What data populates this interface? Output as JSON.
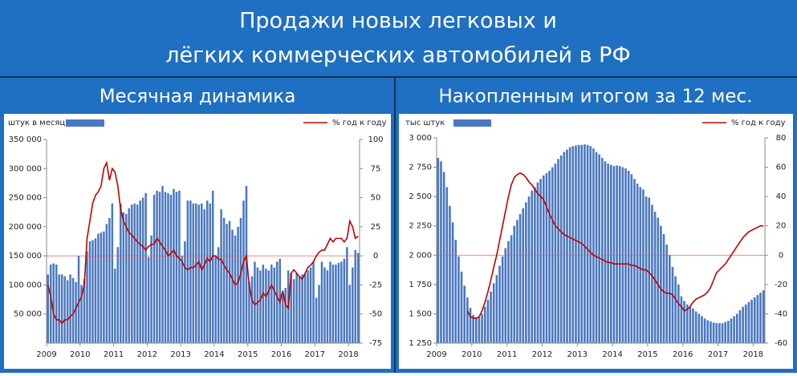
{
  "header": {
    "title": [
      "Продажи новых легковых и",
      "лёгких коммерческих автомобилей в РФ"
    ]
  },
  "chart_data": [
    {
      "type": "bar",
      "title": "Месячная динамика",
      "categories": [
        "2009",
        null,
        null,
        null,
        null,
        null,
        null,
        null,
        null,
        null,
        null,
        null,
        "2010",
        null,
        null,
        null,
        null,
        null,
        null,
        null,
        null,
        null,
        null,
        null,
        "2011",
        null,
        null,
        null,
        null,
        null,
        null,
        null,
        null,
        null,
        null,
        null,
        "2012",
        null,
        null,
        null,
        null,
        null,
        null,
        null,
        null,
        null,
        null,
        null,
        "2013",
        null,
        null,
        null,
        null,
        null,
        null,
        null,
        null,
        null,
        null,
        null,
        "2014",
        null,
        null,
        null,
        null,
        null,
        null,
        null,
        null,
        null,
        null,
        null,
        "2015",
        null,
        null,
        null,
        null,
        null,
        null,
        null,
        null,
        null,
        null,
        null,
        "2016",
        null,
        null,
        null,
        null,
        null,
        null,
        null,
        null,
        null,
        null,
        null,
        "2017",
        null,
        null,
        null,
        null,
        null,
        null,
        null,
        null,
        null,
        null,
        null,
        "2018",
        null,
        null,
        null
      ],
      "series": [
        {
          "name": "штук в месяц",
          "color": "#4a78c0",
          "type": "bar",
          "values": [
            118000,
            135000,
            137000,
            135000,
            118000,
            118000,
            115000,
            108000,
            118000,
            112000,
            105000,
            150000,
            100000,
            110000,
            158000,
            175000,
            177000,
            180000,
            188000,
            190000,
            192000,
            205000,
            215000,
            240000,
            128000,
            165000,
            240000,
            225000,
            222000,
            232000,
            238000,
            240000,
            238000,
            245000,
            250000,
            258000,
            148000,
            185000,
            255000,
            262000,
            260000,
            270000,
            260000,
            258000,
            255000,
            265000,
            260000,
            262000,
            150000,
            175000,
            245000,
            245000,
            240000,
            240000,
            238000,
            240000,
            230000,
            245000,
            240000,
            262000,
            150000,
            165000,
            230000,
            215000,
            205000,
            210000,
            195000,
            185000,
            200000,
            215000,
            245000,
            270000,
            105000,
            115000,
            140000,
            130000,
            125000,
            135000,
            128000,
            125000,
            135000,
            130000,
            140000,
            145000,
            85000,
            95000,
            125000,
            120000,
            110000,
            120000,
            115000,
            118000,
            120000,
            125000,
            130000,
            140000,
            78000,
            100000,
            140000,
            130000,
            125000,
            140000,
            135000,
            135000,
            138000,
            140000,
            145000,
            165000,
            100000,
            130000,
            160000,
            155000
          ]
        },
        {
          "name": "% год к году",
          "color": "#c00000",
          "type": "line",
          "axis": "y2",
          "values": [
            -25,
            -35,
            -50,
            -55,
            -55,
            -58,
            -55,
            -55,
            -52,
            -50,
            -45,
            -40,
            -35,
            -25,
            15,
            30,
            45,
            52,
            55,
            60,
            75,
            80,
            65,
            75,
            72,
            60,
            40,
            30,
            25,
            20,
            18,
            15,
            12,
            10,
            8,
            5,
            8,
            10,
            10,
            15,
            12,
            8,
            5,
            0,
            2,
            5,
            0,
            -2,
            -5,
            -10,
            -12,
            -10,
            -10,
            -8,
            -5,
            -12,
            -8,
            -2,
            -5,
            0,
            0,
            -3,
            -3,
            -8,
            -12,
            -15,
            -20,
            -25,
            -23,
            -15,
            -5,
            0,
            -25,
            -38,
            -42,
            -40,
            -38,
            -32,
            -35,
            -30,
            -25,
            -30,
            -35,
            -40,
            -30,
            -42,
            -45,
            -15,
            -12,
            -15,
            -18,
            -20,
            -15,
            -10,
            -8,
            -5,
            0,
            3,
            5,
            5,
            10,
            15,
            12,
            15,
            15,
            15,
            12,
            15,
            30,
            25,
            15,
            17
          ]
        }
      ],
      "ylim": [
        0,
        350000
      ],
      "yticks": [
        {
          "value": 50000,
          "label": "50 000"
        },
        {
          "value": 100000,
          "label": "100 000"
        },
        {
          "value": 150000,
          "label": "150 000"
        },
        {
          "value": 200000,
          "label": "200 000"
        },
        {
          "value": 250000,
          "label": "250 000"
        },
        {
          "value": 300000,
          "label": "300 000"
        },
        {
          "value": 350000,
          "label": "350 000"
        }
      ],
      "y2lim": [
        -75,
        100
      ],
      "y2ticks": [
        -75,
        -50,
        -25,
        0,
        25,
        50,
        75,
        100
      ],
      "refline": {
        "axis": "y2",
        "value": 0,
        "color": "#e06060"
      }
    },
    {
      "type": "bar",
      "title": "Накопленным итогом за 12 мес.",
      "categories": [
        "2009",
        null,
        null,
        null,
        null,
        null,
        null,
        null,
        null,
        null,
        null,
        null,
        "2010",
        null,
        null,
        null,
        null,
        null,
        null,
        null,
        null,
        null,
        null,
        null,
        "2011",
        null,
        null,
        null,
        null,
        null,
        null,
        null,
        null,
        null,
        null,
        null,
        "2012",
        null,
        null,
        null,
        null,
        null,
        null,
        null,
        null,
        null,
        null,
        null,
        "2013",
        null,
        null,
        null,
        null,
        null,
        null,
        null,
        null,
        null,
        null,
        null,
        "2014",
        null,
        null,
        null,
        null,
        null,
        null,
        null,
        null,
        null,
        null,
        null,
        "2015",
        null,
        null,
        null,
        null,
        null,
        null,
        null,
        null,
        null,
        null,
        null,
        "2016",
        null,
        null,
        null,
        null,
        null,
        null,
        null,
        null,
        null,
        null,
        null,
        "2017",
        null,
        null,
        null,
        null,
        null,
        null,
        null,
        null,
        null,
        null,
        null,
        "2018",
        null,
        null,
        null
      ],
      "series": [
        {
          "name": "тыс штук",
          "color": "#4a78c0",
          "type": "bar",
          "values": [
            2830,
            2800,
            2710,
            2580,
            2420,
            2280,
            2130,
            1990,
            1860,
            1740,
            1640,
            1550,
            1490,
            1470,
            1475,
            1500,
            1560,
            1620,
            1690,
            1760,
            1830,
            1910,
            1990,
            2060,
            2120,
            2170,
            2250,
            2300,
            2350,
            2400,
            2450,
            2500,
            2550,
            2580,
            2620,
            2650,
            2680,
            2700,
            2720,
            2750,
            2780,
            2820,
            2850,
            2880,
            2900,
            2920,
            2930,
            2935,
            2940,
            2940,
            2945,
            2940,
            2930,
            2910,
            2880,
            2860,
            2830,
            2800,
            2780,
            2770,
            2760,
            2765,
            2760,
            2750,
            2740,
            2720,
            2690,
            2650,
            2610,
            2580,
            2560,
            2500,
            2490,
            2430,
            2370,
            2320,
            2250,
            2180,
            2090,
            2000,
            1900,
            1820,
            1750,
            1650,
            1610,
            1580,
            1560,
            1545,
            1520,
            1500,
            1480,
            1460,
            1445,
            1435,
            1425,
            1420,
            1420,
            1420,
            1430,
            1440,
            1460,
            1480,
            1500,
            1530,
            1560,
            1580,
            1600,
            1620,
            1640,
            1660,
            1680,
            1700
          ]
        },
        {
          "name": "% год к году",
          "color": "#c00000",
          "type": "line",
          "axis": "y2",
          "values": [
            null,
            null,
            null,
            null,
            null,
            null,
            null,
            null,
            null,
            null,
            -38,
            -42,
            -43,
            -43,
            -42,
            -38,
            -32,
            -25,
            -17,
            -8,
            0,
            10,
            20,
            30,
            40,
            48,
            53,
            55,
            56,
            55,
            53,
            50,
            48,
            45,
            42,
            40,
            38,
            33,
            28,
            24,
            20,
            18,
            16,
            14,
            13,
            12,
            11,
            10,
            9,
            8,
            6,
            4,
            2,
            0,
            -1,
            -2,
            -3,
            -4,
            -5,
            -5,
            -6,
            -6,
            -6,
            -6,
            -6,
            -6,
            -7,
            -7,
            -8,
            -9,
            -10,
            -10,
            -12,
            -14,
            -17,
            -20,
            -23,
            -25,
            -26,
            -26,
            -27,
            -30,
            -33,
            -35,
            -38,
            -37,
            -35,
            -32,
            -30,
            -29,
            -28,
            -27,
            -25,
            -22,
            -17,
            -12,
            -10,
            -8,
            -6,
            -3,
            0,
            3,
            6,
            9,
            12,
            14,
            16,
            17,
            18,
            19,
            20,
            20
          ]
        }
      ],
      "ylim": [
        1250,
        3000
      ],
      "yticks": [
        {
          "value": 1250,
          "label": "1 250"
        },
        {
          "value": 1500,
          "label": "1 500"
        },
        {
          "value": 1750,
          "label": "1 750"
        },
        {
          "value": 2000,
          "label": "2 000"
        },
        {
          "value": 2250,
          "label": "2 250"
        },
        {
          "value": 2500,
          "label": "2 500"
        },
        {
          "value": 2750,
          "label": "2 750"
        },
        {
          "value": 3000,
          "label": "3 000"
        }
      ],
      "y2lim": [
        -60,
        80
      ],
      "y2ticks": [
        -60,
        -40,
        -20,
        0,
        20,
        40,
        60,
        80
      ],
      "refline": {
        "axis": "y2",
        "value": 0,
        "color": "#e06060"
      }
    }
  ]
}
